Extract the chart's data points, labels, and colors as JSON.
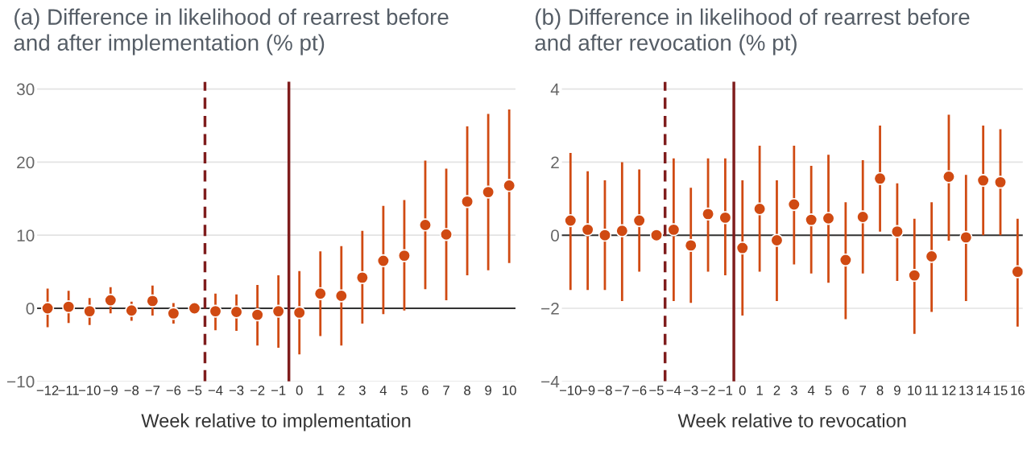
{
  "chart_data": [
    {
      "type": "scatter",
      "title": "(a) Difference in likelihood of rearrest before\nand after implementation (% pt)",
      "xlabel": "Week relative to implementation",
      "series": [
        {
          "color": "#d04a12",
          "x": [
            -12,
            -11,
            -10,
            -9,
            -8,
            -7,
            -6,
            -5,
            -4,
            -3,
            -2,
            -1,
            0,
            1,
            2,
            3,
            4,
            5,
            6,
            7,
            8,
            9,
            10
          ],
          "values": [
            0.0,
            0.2,
            -0.4,
            1.1,
            -0.3,
            1.0,
            -0.7,
            0.0,
            -0.4,
            -0.5,
            -0.9,
            -0.4,
            -0.6,
            2.0,
            1.7,
            4.2,
            6.5,
            7.2,
            11.4,
            10.1,
            14.6,
            15.9,
            16.8
          ],
          "errors": [
            [
              -2.6,
              2.7
            ],
            [
              -2.0,
              2.4
            ],
            [
              -2.3,
              1.4
            ],
            [
              -0.7,
              2.9
            ],
            [
              -1.7,
              0.9
            ],
            [
              -1.0,
              3.1
            ],
            [
              -2.1,
              0.7
            ],
            null,
            [
              -3.0,
              2.0
            ],
            [
              -3.1,
              1.9
            ],
            [
              -5.1,
              3.2
            ],
            [
              -5.4,
              4.5
            ],
            [
              -6.3,
              5.1
            ],
            [
              -3.8,
              7.8
            ],
            [
              -5.1,
              8.5
            ],
            [
              -2.1,
              10.6
            ],
            [
              -0.8,
              14.0
            ],
            [
              -0.3,
              14.8
            ],
            [
              2.6,
              20.2
            ],
            [
              1.1,
              19.1
            ],
            [
              4.5,
              24.9
            ],
            [
              5.2,
              26.6
            ],
            [
              6.2,
              27.2
            ]
          ]
        }
      ],
      "marker": "circle",
      "xlim": [
        -12.5,
        10.3
      ],
      "ylim": [
        -10,
        31
      ],
      "xticks": [
        {
          "value": -12,
          "label": "−12"
        },
        {
          "value": -11,
          "label": "−11"
        },
        {
          "value": -10,
          "label": "−10"
        },
        {
          "value": -9,
          "label": "−9"
        },
        {
          "value": -8,
          "label": "−8"
        },
        {
          "value": -7,
          "label": "−7"
        },
        {
          "value": -6,
          "label": "−6"
        },
        {
          "value": -5,
          "label": "−5"
        },
        {
          "value": -4,
          "label": "−4"
        },
        {
          "value": -3,
          "label": "−3"
        },
        {
          "value": -2,
          "label": "−2"
        },
        {
          "value": -1,
          "label": "−1"
        },
        0,
        1,
        2,
        3,
        4,
        5,
        6,
        7,
        8,
        9,
        10
      ],
      "yticks": [
        {
          "value": -10,
          "label": "−10"
        },
        0,
        10,
        20,
        30
      ],
      "grid": "y",
      "ref_lines": [
        {
          "axis": "y",
          "value": 0,
          "color": "#333333",
          "line_style": "solid"
        },
        {
          "axis": "x",
          "value": -4.5,
          "color": "#7f1d1d",
          "line_style": "dashed"
        },
        {
          "axis": "x",
          "value": -0.5,
          "color": "#7f1d1d",
          "line_style": "solid"
        }
      ]
    },
    {
      "type": "scatter",
      "title": "(b) Difference in likelihood of rearrest before\nand after revocation (% pt)",
      "xlabel": "Week relative to revocation",
      "series": [
        {
          "color": "#d04a12",
          "x": [
            -10,
            -9,
            -8,
            -7,
            -6,
            -5,
            -4,
            -3,
            -2,
            -1,
            0,
            1,
            2,
            3,
            4,
            5,
            6,
            7,
            8,
            9,
            10,
            11,
            12,
            13,
            14,
            15,
            16
          ],
          "values": [
            0.4,
            0.15,
            0.0,
            0.12,
            0.4,
            0.0,
            0.15,
            -0.28,
            0.58,
            0.48,
            -0.35,
            0.72,
            -0.14,
            0.84,
            0.42,
            0.46,
            -0.68,
            0.5,
            1.55,
            0.1,
            -1.1,
            -0.58,
            1.6,
            -0.06,
            1.5,
            1.45,
            -1.0
          ],
          "errors": [
            [
              -1.5,
              2.25
            ],
            [
              -1.5,
              1.75
            ],
            [
              -1.5,
              1.5
            ],
            [
              -1.8,
              2.0
            ],
            [
              -1.0,
              1.8
            ],
            null,
            [
              -1.8,
              2.1
            ],
            [
              -1.85,
              1.3
            ],
            [
              -1.0,
              2.1
            ],
            [
              -1.1,
              2.1
            ],
            [
              -2.2,
              1.5
            ],
            [
              -1.0,
              2.45
            ],
            [
              -1.8,
              1.5
            ],
            [
              -0.8,
              2.45
            ],
            [
              -1.05,
              1.9
            ],
            [
              -1.3,
              2.2
            ],
            [
              -2.3,
              0.9
            ],
            [
              -1.05,
              2.05
            ],
            [
              0.1,
              3.0
            ],
            [
              -1.25,
              1.42
            ],
            [
              -2.7,
              0.45
            ],
            [
              -2.1,
              0.9
            ],
            [
              -0.15,
              3.3
            ],
            [
              -1.8,
              1.65
            ],
            [
              0.0,
              3.0
            ],
            [
              0.0,
              2.9
            ],
            [
              -2.5,
              0.45
            ]
          ]
        }
      ],
      "marker": "circle",
      "xlim": [
        -10.5,
        16.3
      ],
      "ylim": [
        -4,
        4.2
      ],
      "xticks": [
        {
          "value": -10,
          "label": "−10"
        },
        {
          "value": -9,
          "label": "−9"
        },
        {
          "value": -8,
          "label": "−8"
        },
        {
          "value": -7,
          "label": "−7"
        },
        {
          "value": -6,
          "label": "−6"
        },
        {
          "value": -5,
          "label": "−5"
        },
        {
          "value": -4,
          "label": "−4"
        },
        {
          "value": -3,
          "label": "−3"
        },
        {
          "value": -2,
          "label": "−2"
        },
        {
          "value": -1,
          "label": "−1"
        },
        0,
        1,
        2,
        3,
        4,
        5,
        6,
        7,
        8,
        9,
        10,
        11,
        12,
        13,
        14,
        15,
        16
      ],
      "yticks": [
        {
          "value": -4,
          "label": "−4"
        },
        {
          "value": -2,
          "label": "−2"
        },
        0,
        2,
        4
      ],
      "grid": "y",
      "ref_lines": [
        {
          "axis": "y",
          "value": 0,
          "color": "#333333",
          "line_style": "solid"
        },
        {
          "axis": "x",
          "value": -4.5,
          "color": "#7f1d1d",
          "line_style": "dashed"
        },
        {
          "axis": "x",
          "value": -0.5,
          "color": "#7f1d1d",
          "line_style": "solid"
        }
      ]
    }
  ]
}
